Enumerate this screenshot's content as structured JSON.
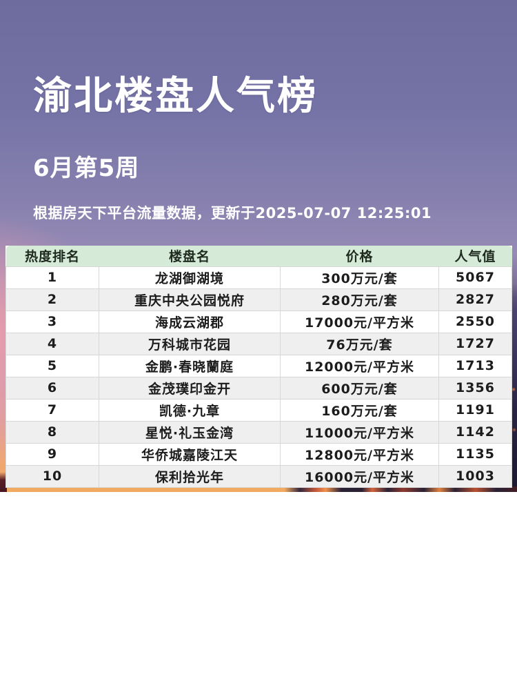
{
  "header": {
    "title": "渝北楼盘人气榜",
    "subtitle": "6月第5周",
    "note": "根据房天下平台流量数据，更新于2025-07-07 12:25:01"
  },
  "table": {
    "columns": [
      "热度排名",
      "楼盘名",
      "价格",
      "人气值"
    ],
    "rows": [
      {
        "rank": "1",
        "name": "龙湖御湖境",
        "price": "300万元/套",
        "popularity": "5067"
      },
      {
        "rank": "2",
        "name": "重庆中央公园悦府",
        "price": "280万元/套",
        "popularity": "2827"
      },
      {
        "rank": "3",
        "name": "海成云湖郡",
        "price": "17000元/平方米",
        "popularity": "2550"
      },
      {
        "rank": "4",
        "name": "万科城市花园",
        "price": "76万元/套",
        "popularity": "1727"
      },
      {
        "rank": "5",
        "name": "金鹏·春晓蘭庭",
        "price": "12000元/平方米",
        "popularity": "1713"
      },
      {
        "rank": "6",
        "name": "金茂璞印金开",
        "price": "600万元/套",
        "popularity": "1356"
      },
      {
        "rank": "7",
        "name": "凯德·九章",
        "price": "160万元/套",
        "popularity": "1191"
      },
      {
        "rank": "8",
        "name": "星悦·礼玉金湾",
        "price": "11000元/平方米",
        "popularity": "1142"
      },
      {
        "rank": "9",
        "name": "华侨城嘉陵江天",
        "price": "12800元/平方米",
        "popularity": "1135"
      },
      {
        "rank": "10",
        "name": "保利拾光年",
        "price": "16000元/平方米",
        "popularity": "1003"
      }
    ]
  },
  "colors": {
    "table_header_bg": "#d6ead8",
    "table_alt_row_bg": "#efefef",
    "table_text": "#1c1c1c",
    "title_text": "#ffffff",
    "bg_purple_top": "#7573a6",
    "bg_pink_left": "#f79ea7",
    "bg_orange_bottom": "#f0a55f",
    "bg_skyline_dark": "#2a2135"
  },
  "chart_data": {
    "type": "table",
    "title": "渝北楼盘人气榜",
    "period": "6月第5周",
    "source_note": "根据房天下平台流量数据，更新于2025-07-07 12:25:01",
    "columns": [
      "热度排名",
      "楼盘名",
      "价格",
      "人气值"
    ],
    "rows": [
      [
        1,
        "龙湖御湖境",
        "300万元/套",
        5067
      ],
      [
        2,
        "重庆中央公园悦府",
        "280万元/套",
        2827
      ],
      [
        3,
        "海成云湖郡",
        "17000元/平方米",
        2550
      ],
      [
        4,
        "万科城市花园",
        "76万元/套",
        1727
      ],
      [
        5,
        "金鹏·春晓蘭庭",
        "12000元/平方米",
        1713
      ],
      [
        6,
        "金茂璞印金开",
        "600万元/套",
        1356
      ],
      [
        7,
        "凯德·九章",
        "160万元/套",
        1191
      ],
      [
        8,
        "星悦·礼玉金湾",
        "11000元/平方米",
        1142
      ],
      [
        9,
        "华侨城嘉陵江天",
        "12800元/平方米",
        1135
      ],
      [
        10,
        "保利拾光年",
        "16000元/平方米",
        1003
      ]
    ]
  }
}
